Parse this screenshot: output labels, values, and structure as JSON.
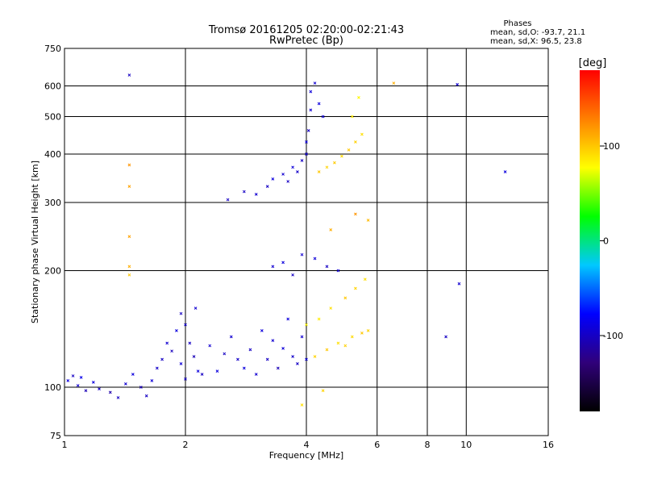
{
  "chart_data": {
    "type": "scatter",
    "title": "Tromsø 20161205 02:20:00-02:21:43",
    "subtitle": "RwPretec (Bp)",
    "xlabel": "Frequency [MHz]",
    "ylabel": "Stationary phase Virtual Height [km]",
    "x_scale": "log",
    "y_scale": "log",
    "xlim": [
      1,
      16
    ],
    "ylim": [
      75,
      750
    ],
    "grid": true,
    "x_ticks": [
      1,
      2,
      4,
      6,
      8,
      10,
      16
    ],
    "x_tick_labels": [
      "1",
      "2",
      "4",
      "6",
      "8",
      "10",
      "16"
    ],
    "y_ticks": [
      75,
      100,
      200,
      300,
      400,
      500,
      600,
      750
    ],
    "y_tick_labels": [
      "75",
      "100",
      "200",
      "300",
      "400",
      "500",
      "600",
      "750"
    ],
    "legend_title": "Phases",
    "legend_lines": [
      "mean, sd,O: -93.7, 21.1",
      "mean, sd,X:  96.5, 23.8"
    ],
    "colorbar": {
      "label": "[deg]",
      "range": [
        -180,
        180
      ],
      "ticks": [
        100,
        0,
        -100
      ],
      "tick_labels": [
        "100",
        "0",
        "-100"
      ],
      "colors": [
        "#000000",
        "#30007a",
        "#0000ff",
        "#00c8ff",
        "#00ff00",
        "#ffff00",
        "#ff8000",
        "#ff0000"
      ]
    },
    "series": [
      {
        "points": [
          [
            1.02,
            104,
            -90
          ],
          [
            1.05,
            107,
            -100
          ],
          [
            1.08,
            101,
            -95
          ],
          [
            1.1,
            106,
            -85
          ],
          [
            1.13,
            98,
            -105
          ],
          [
            1.18,
            103,
            -90
          ],
          [
            1.22,
            99,
            -100
          ],
          [
            1.3,
            97,
            -110
          ],
          [
            1.36,
            94,
            -100
          ],
          [
            1.42,
            102,
            -95
          ],
          [
            1.48,
            108,
            -90
          ],
          [
            1.55,
            100,
            -105
          ],
          [
            1.6,
            95,
            -100
          ],
          [
            1.65,
            104,
            -92
          ],
          [
            1.7,
            112,
            -98
          ],
          [
            1.75,
            118,
            -100
          ],
          [
            1.8,
            130,
            -95
          ],
          [
            1.85,
            124,
            -102
          ],
          [
            1.9,
            140,
            -90
          ],
          [
            1.95,
            155,
            -100
          ],
          [
            2.0,
            145,
            -95
          ],
          [
            2.05,
            130,
            -100
          ],
          [
            2.1,
            120,
            -105
          ],
          [
            2.12,
            160,
            -95
          ],
          [
            2.15,
            110,
            -90
          ],
          [
            2.2,
            108,
            -100
          ],
          [
            1.95,
            115,
            -92
          ],
          [
            2.0,
            105,
            -100
          ],
          [
            2.3,
            128,
            -95
          ],
          [
            2.4,
            110,
            -90
          ],
          [
            2.5,
            122,
            -100
          ],
          [
            2.6,
            135,
            -95
          ],
          [
            2.7,
            118,
            -98
          ],
          [
            2.8,
            112,
            -90
          ],
          [
            2.9,
            125,
            -100
          ],
          [
            3.0,
            108,
            -95
          ],
          [
            3.1,
            140,
            -90
          ],
          [
            3.2,
            118,
            -100
          ],
          [
            3.3,
            132,
            -95
          ],
          [
            3.4,
            112,
            -105
          ],
          [
            3.5,
            126,
            -92
          ],
          [
            3.6,
            150,
            -90
          ],
          [
            3.7,
            120,
            -98
          ],
          [
            3.8,
            115,
            -100
          ],
          [
            3.9,
            135,
            -95
          ],
          [
            4.0,
            118,
            -90
          ],
          [
            3.3,
            205,
            -95
          ],
          [
            3.5,
            210,
            -90
          ],
          [
            3.7,
            195,
            -100
          ],
          [
            3.9,
            220,
            -95
          ],
          [
            4.2,
            215,
            -92
          ],
          [
            4.5,
            205,
            -100
          ],
          [
            4.8,
            200,
            -95
          ],
          [
            2.8,
            320,
            -100
          ],
          [
            3.0,
            315,
            -95
          ],
          [
            3.2,
            330,
            -100
          ],
          [
            3.3,
            345,
            -90
          ],
          [
            3.5,
            355,
            -95
          ],
          [
            3.6,
            340,
            -100
          ],
          [
            3.7,
            370,
            -92
          ],
          [
            3.8,
            360,
            -98
          ],
          [
            3.9,
            385,
            -100
          ],
          [
            4.0,
            400,
            -95
          ],
          [
            4.0,
            430,
            -90
          ],
          [
            4.05,
            460,
            -100
          ],
          [
            4.1,
            520,
            -95
          ],
          [
            4.1,
            580,
            -92
          ],
          [
            4.2,
            610,
            -95
          ],
          [
            4.3,
            540,
            -90
          ],
          [
            4.4,
            500,
            -95
          ],
          [
            1.45,
            640,
            -100
          ],
          [
            9.5,
            605,
            -95
          ],
          [
            12.5,
            360,
            -90
          ],
          [
            2.55,
            305,
            -100
          ],
          [
            8.9,
            135,
            -100
          ],
          [
            9.6,
            185,
            -95
          ]
        ]
      },
      {
        "points": [
          [
            4.2,
            120,
            95
          ],
          [
            4.5,
            125,
            100
          ],
          [
            4.8,
            130,
            90
          ],
          [
            5.0,
            128,
            96
          ],
          [
            5.2,
            135,
            92
          ],
          [
            5.5,
            138,
            100
          ],
          [
            5.7,
            140,
            95
          ],
          [
            4.0,
            145,
            80
          ],
          [
            4.3,
            150,
            85
          ],
          [
            4.6,
            160,
            90
          ],
          [
            5.0,
            170,
            100
          ],
          [
            5.3,
            180,
            95
          ],
          [
            5.6,
            190,
            90
          ],
          [
            4.3,
            360,
            100
          ],
          [
            4.5,
            370,
            95
          ],
          [
            4.7,
            380,
            98
          ],
          [
            4.9,
            395,
            92
          ],
          [
            5.1,
            410,
            100
          ],
          [
            5.3,
            430,
            96
          ],
          [
            5.5,
            450,
            90
          ],
          [
            5.2,
            500,
            85
          ],
          [
            5.4,
            560,
            80
          ],
          [
            6.6,
            610,
            110
          ],
          [
            4.6,
            255,
            110
          ],
          [
            5.3,
            280,
            120
          ],
          [
            5.7,
            270,
            105
          ],
          [
            1.45,
            205,
            110
          ],
          [
            1.45,
            195,
            100
          ],
          [
            1.45,
            375,
            120
          ],
          [
            1.45,
            330,
            115
          ],
          [
            1.45,
            245,
            115
          ],
          [
            3.9,
            90,
            90
          ],
          [
            4.4,
            98,
            95
          ]
        ]
      }
    ]
  }
}
